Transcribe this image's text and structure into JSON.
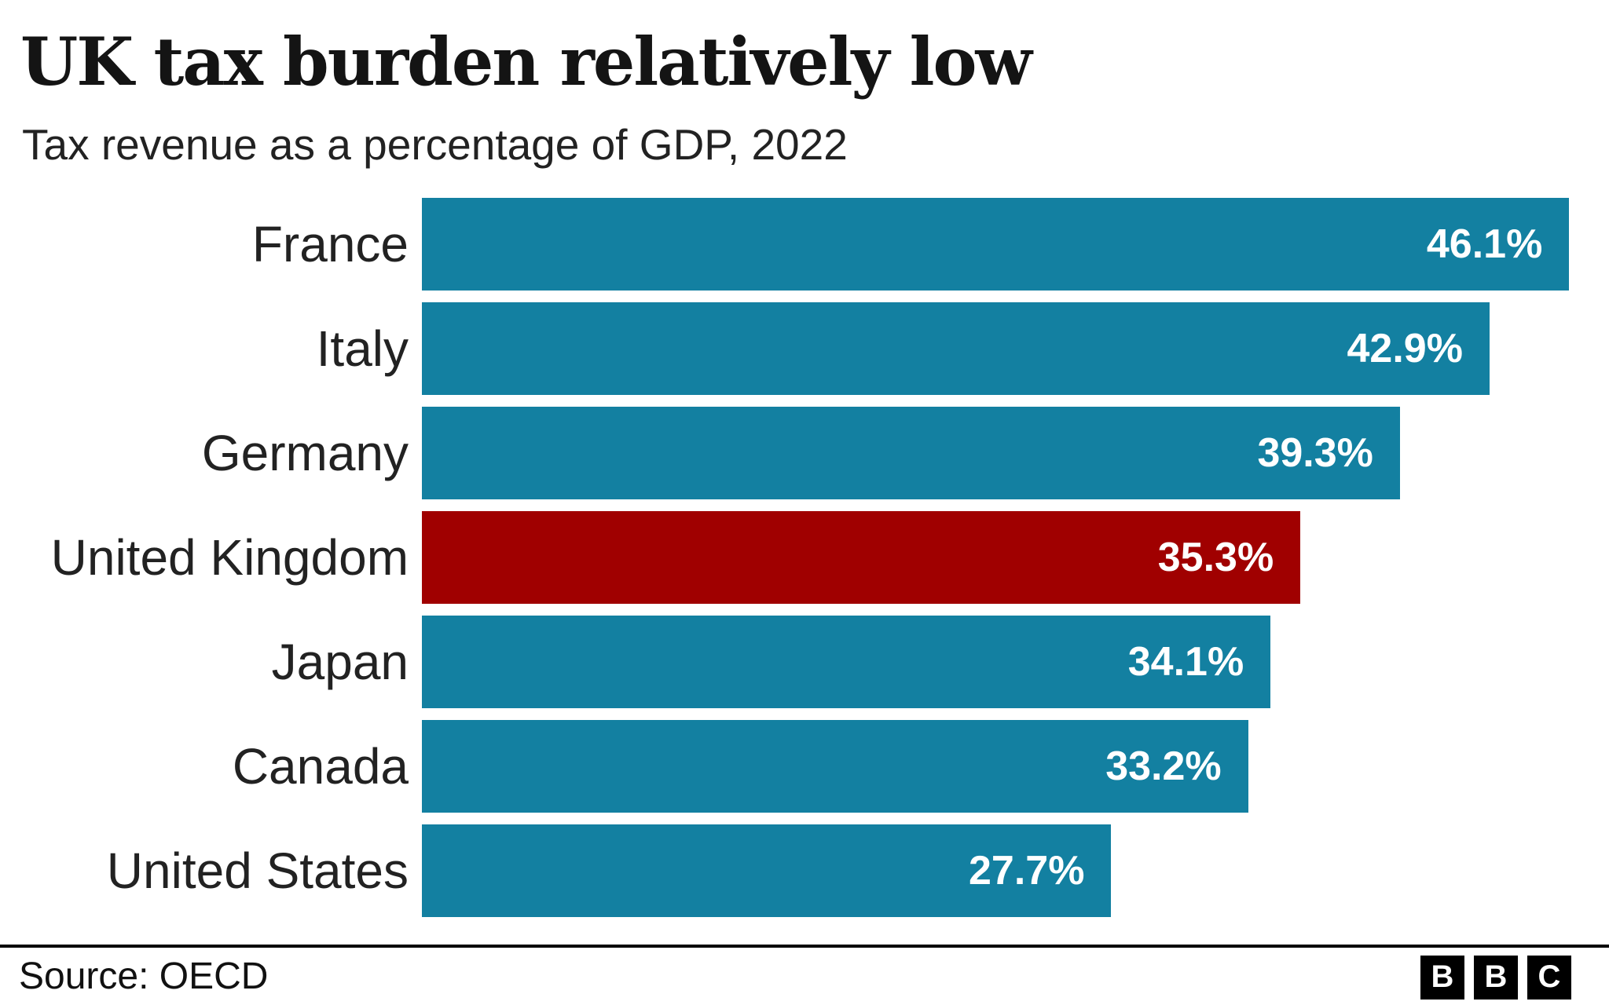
{
  "header": {
    "title": "UK tax burden relatively low",
    "subtitle": "Tax revenue as a percentage of GDP, 2022"
  },
  "chart_data": {
    "type": "bar",
    "orientation": "horizontal",
    "title": "UK tax burden relatively low",
    "subtitle": "Tax revenue as a percentage of GDP, 2022",
    "categories": [
      "France",
      "Italy",
      "Germany",
      "United Kingdom",
      "Japan",
      "Canada",
      "United States"
    ],
    "values": [
      46.1,
      42.9,
      39.3,
      35.3,
      34.1,
      33.2,
      27.7
    ],
    "value_labels": [
      "46.1%",
      "42.9%",
      "39.3%",
      "35.3%",
      "34.1%",
      "33.2%",
      "27.7%"
    ],
    "unit": "%",
    "highlight_category": "United Kingdom",
    "xlim": [
      0,
      47.7
    ],
    "grid": false,
    "legend": false,
    "colors": {
      "bar": "#1380a1",
      "highlight": "#a00000",
      "value_text": "#ffffff"
    }
  },
  "footer": {
    "source": "Source: OECD",
    "logo": {
      "name": "BBC",
      "letters": [
        "B",
        "B",
        "C"
      ]
    }
  }
}
